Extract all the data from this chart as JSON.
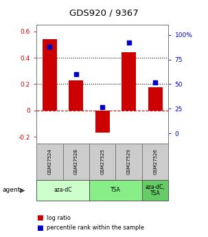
{
  "title": "GDS920 / 9367",
  "samples": [
    "GSM27524",
    "GSM27528",
    "GSM27525",
    "GSM27529",
    "GSM27526"
  ],
  "log_ratios": [
    0.54,
    0.23,
    -0.17,
    0.44,
    0.175
  ],
  "percentile_ranks": [
    0.88,
    0.6,
    0.27,
    0.92,
    0.52
  ],
  "agent_groups": [
    {
      "label": "aza-dC",
      "start": 0,
      "end": 2,
      "color": "#ccffcc"
    },
    {
      "label": "TSA",
      "start": 2,
      "end": 4,
      "color": "#88ee88"
    },
    {
      "label": "aza-dC,\nTSA",
      "start": 4,
      "end": 5,
      "color": "#66cc66"
    }
  ],
  "bar_color": "#cc0000",
  "dot_color": "#0000cc",
  "ylim_left": [
    -0.25,
    0.65
  ],
  "ylim_right": [
    -0.1,
    1.1
  ],
  "yticks_left": [
    -0.2,
    0.0,
    0.2,
    0.4,
    0.6
  ],
  "yticks_right": [
    0.0,
    0.25,
    0.5,
    0.75,
    1.0
  ],
  "ytick_labels_right": [
    "0",
    "25",
    "50",
    "75",
    "100%"
  ],
  "ytick_labels_left": [
    "-0.2",
    "0",
    "0.2",
    "0.4",
    "0.6"
  ],
  "hlines_dotted": [
    0.2,
    0.4
  ],
  "zero_line_color": "#cc0000",
  "bar_width": 0.55,
  "background_color": "#ffffff",
  "tick_label_color_left": "#cc0000",
  "tick_label_color_right": "#0000cc",
  "sample_box_color": "#cccccc",
  "agent_arrow_color": "#444444"
}
